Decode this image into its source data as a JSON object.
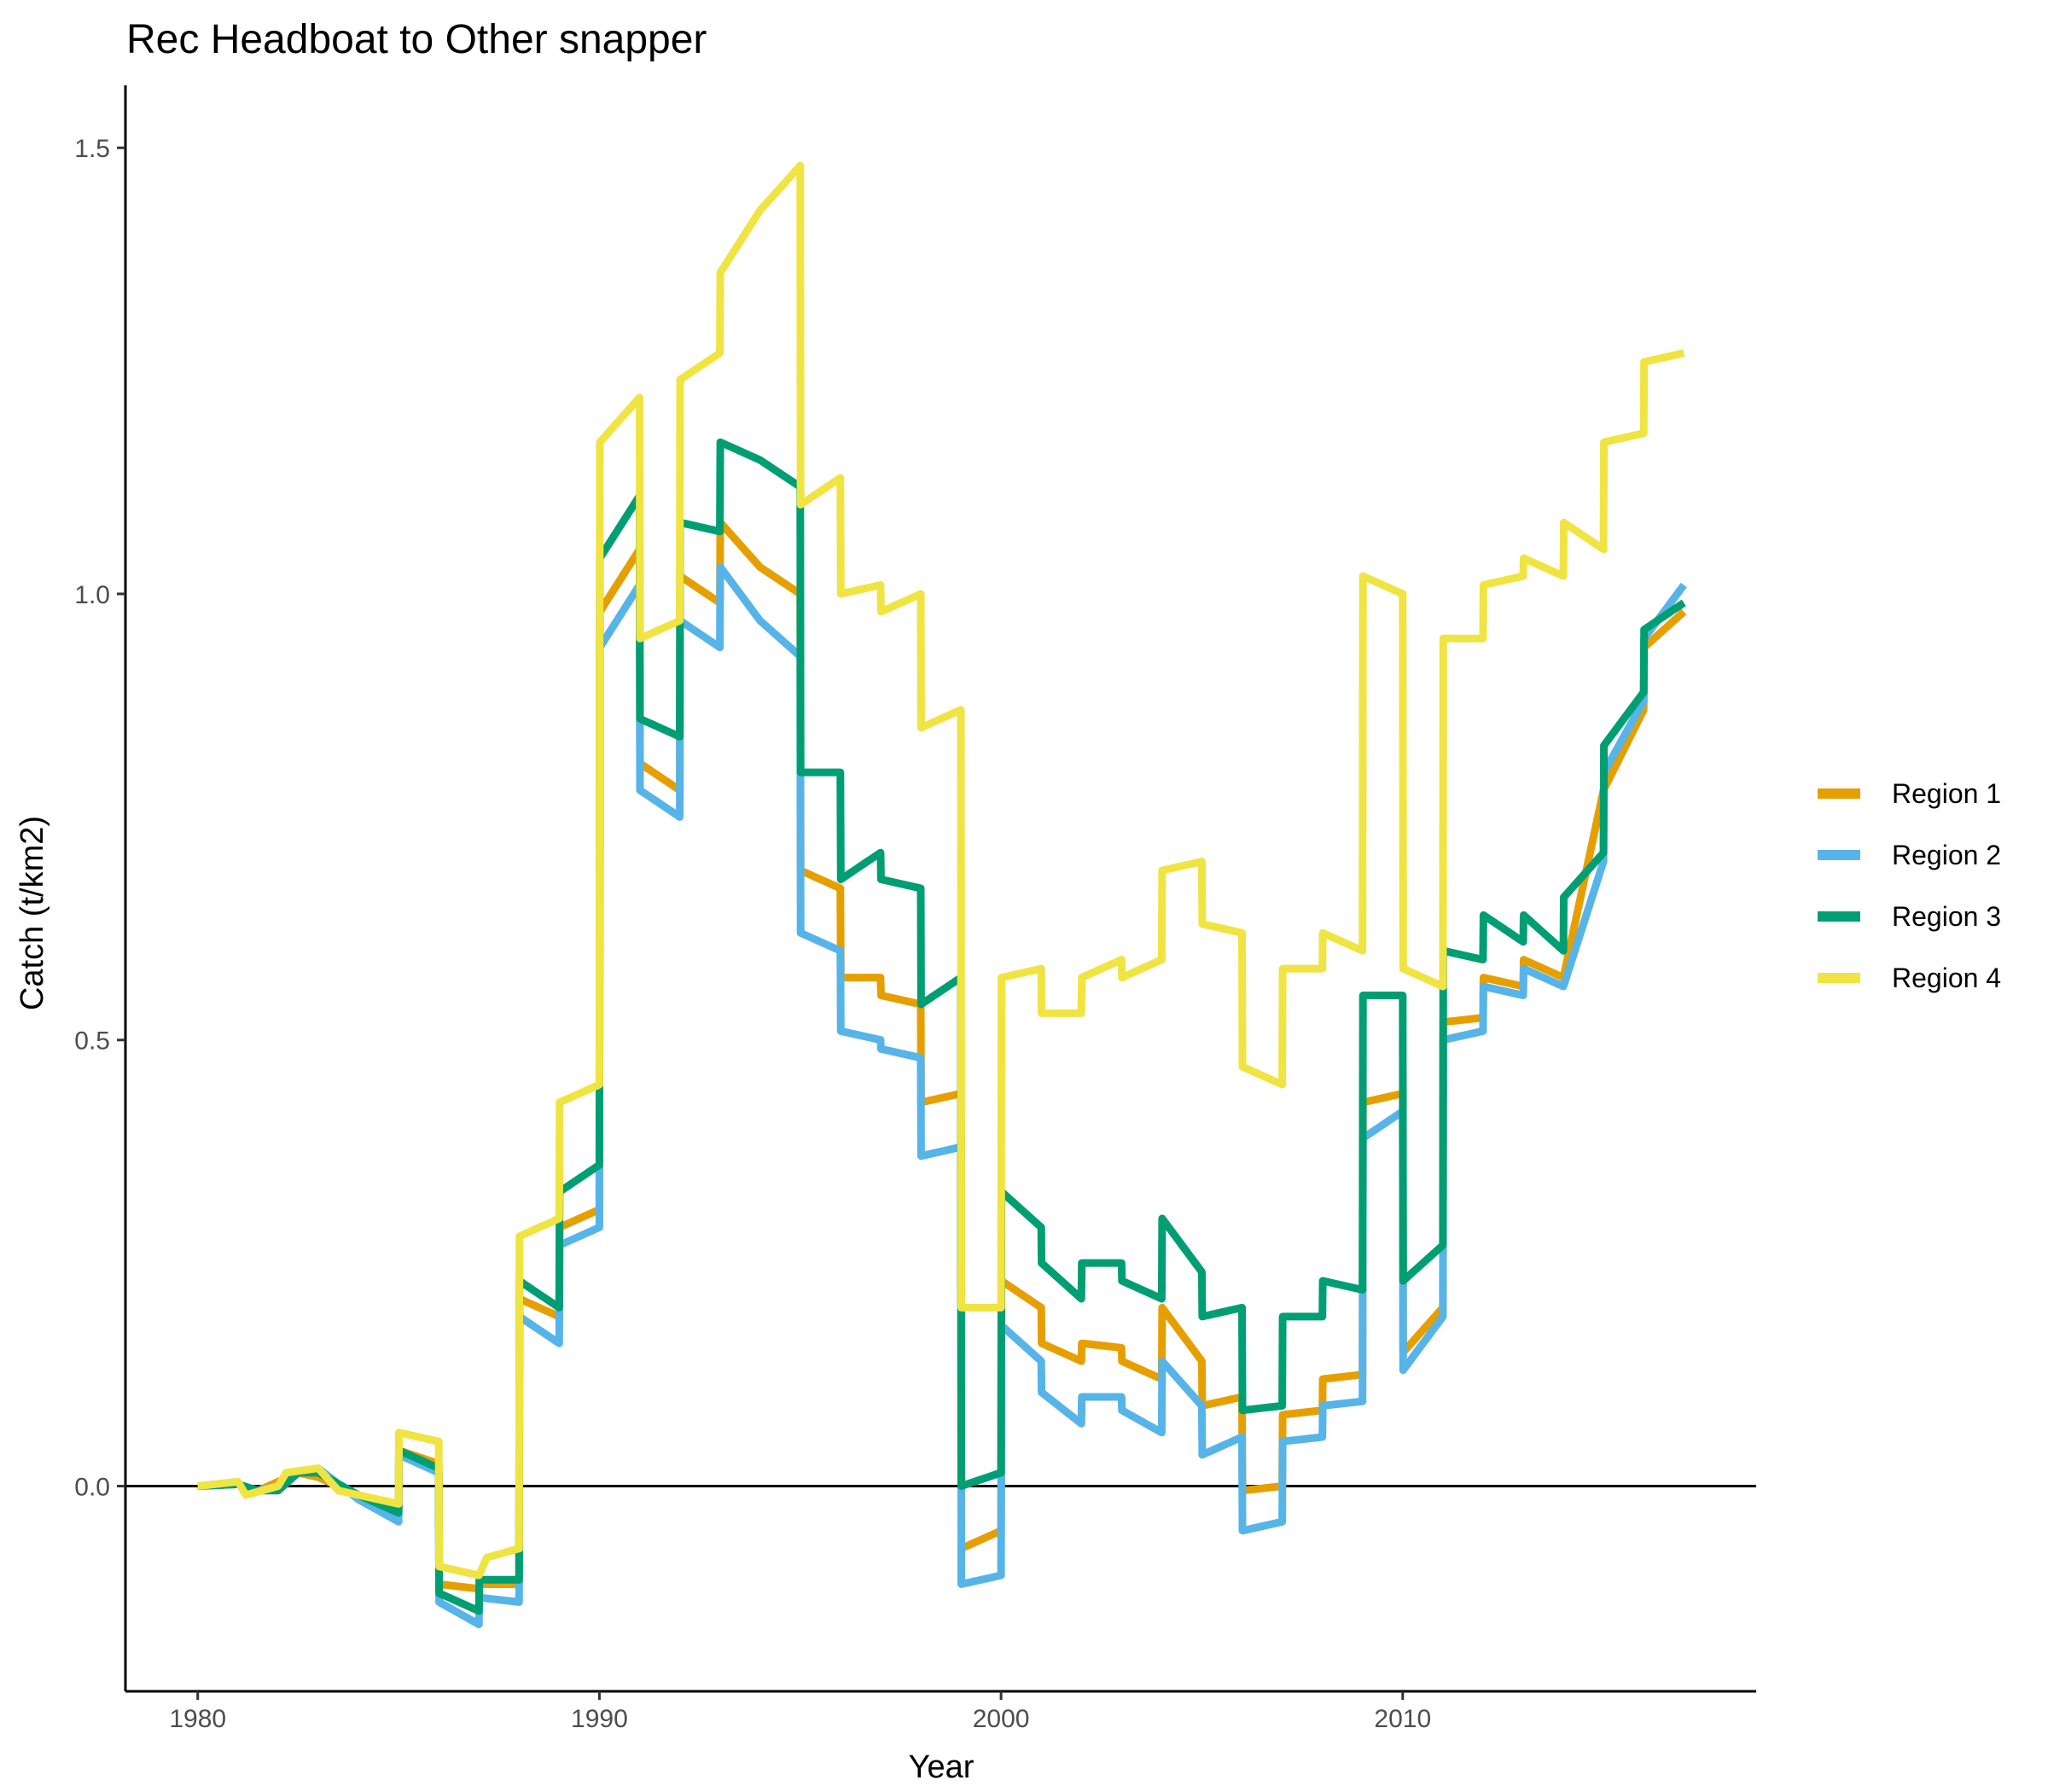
{
  "chart_data": {
    "type": "line",
    "title": "Rec Headboat to Other snapper",
    "xlabel": "Year",
    "ylabel": "Catch (t/km2)",
    "xlim": [
      1978.2,
      2018.8
    ],
    "ylim": [
      -0.23,
      1.57
    ],
    "x_ticks": [
      1980,
      1990,
      2000,
      2010
    ],
    "y_ticks": [
      0.0,
      0.5,
      1.0,
      1.5
    ],
    "y_tick_labels": [
      "0.0",
      "0.5",
      "1.0",
      "1.5"
    ],
    "hline": 0,
    "grid": false,
    "legend_position": "right",
    "series": [
      {
        "name": "Region 1",
        "color": "#E69F00",
        "points": [
          [
            1980,
            0
          ],
          [
            1981,
            0.002
          ],
          [
            1981.5,
            -0.005
          ],
          [
            1982,
            0.005
          ],
          [
            1982.5,
            0.015
          ],
          [
            1983,
            0.01
          ],
          [
            1984,
            -0.01
          ],
          [
            1985,
            -0.025
          ],
          [
            1985.01,
            0.04
          ],
          [
            1986,
            0.025
          ],
          [
            1986.01,
            -0.11
          ],
          [
            1987,
            -0.115
          ],
          [
            1987.01,
            -0.11
          ],
          [
            1988,
            -0.11
          ],
          [
            1988.01,
            0.21
          ],
          [
            1989,
            0.19
          ],
          [
            1989.01,
            0.29
          ],
          [
            1990,
            0.31
          ],
          [
            1990.01,
            0.98
          ],
          [
            1991,
            1.05
          ],
          [
            1991.01,
            0.81
          ],
          [
            1992,
            0.78
          ],
          [
            1992.01,
            1.02
          ],
          [
            1993,
            0.99
          ],
          [
            1993.01,
            1.08
          ],
          [
            1994,
            1.03
          ],
          [
            1995,
            1.0
          ],
          [
            1995.01,
            0.69
          ],
          [
            1996,
            0.67
          ],
          [
            1996.01,
            0.57
          ],
          [
            1997,
            0.57
          ],
          [
            1997.01,
            0.55
          ],
          [
            1998,
            0.54
          ],
          [
            1998.01,
            0.43
          ],
          [
            1999,
            0.44
          ],
          [
            1999.01,
            -0.07
          ],
          [
            2000,
            -0.05
          ],
          [
            2000.01,
            0.23
          ],
          [
            2001,
            0.2
          ],
          [
            2001.01,
            0.16
          ],
          [
            2002,
            0.14
          ],
          [
            2002.01,
            0.16
          ],
          [
            2003,
            0.155
          ],
          [
            2003.01,
            0.14
          ],
          [
            2004,
            0.12
          ],
          [
            2004.01,
            0.2
          ],
          [
            2005,
            0.14
          ],
          [
            2005.01,
            0.09
          ],
          [
            2006,
            0.1
          ],
          [
            2006.01,
            -0.005
          ],
          [
            2007,
            0.0
          ],
          [
            2007.01,
            0.08
          ],
          [
            2008,
            0.085
          ],
          [
            2008.01,
            0.12
          ],
          [
            2009,
            0.125
          ],
          [
            2009.01,
            0.43
          ],
          [
            2010,
            0.44
          ],
          [
            2010.01,
            0.15
          ],
          [
            2011,
            0.2
          ],
          [
            2011.01,
            0.52
          ],
          [
            2012,
            0.525
          ],
          [
            2012.01,
            0.57
          ],
          [
            2013,
            0.56
          ],
          [
            2013.01,
            0.59
          ],
          [
            2014,
            0.57
          ],
          [
            2015,
            0.78
          ],
          [
            2016,
            0.87
          ],
          [
            2016.01,
            0.94
          ],
          [
            2017,
            0.98
          ]
        ]
      },
      {
        "name": "Region 2",
        "color": "#56B4E9",
        "points": [
          [
            1980,
            0
          ],
          [
            1981,
            0.002
          ],
          [
            1981.5,
            -0.005
          ],
          [
            1982,
            0.0
          ],
          [
            1982.5,
            0.015
          ],
          [
            1983,
            0.02
          ],
          [
            1984,
            -0.015
          ],
          [
            1985,
            -0.04
          ],
          [
            1985.01,
            0.035
          ],
          [
            1986,
            0.015
          ],
          [
            1986.01,
            -0.13
          ],
          [
            1987,
            -0.155
          ],
          [
            1987.01,
            -0.125
          ],
          [
            1988,
            -0.13
          ],
          [
            1988.01,
            0.19
          ],
          [
            1989,
            0.16
          ],
          [
            1989.01,
            0.27
          ],
          [
            1990,
            0.29
          ],
          [
            1990.01,
            0.94
          ],
          [
            1991,
            1.01
          ],
          [
            1991.01,
            0.78
          ],
          [
            1992,
            0.75
          ],
          [
            1992.01,
            0.97
          ],
          [
            1993,
            0.94
          ],
          [
            1993.01,
            1.03
          ],
          [
            1994,
            0.97
          ],
          [
            1995,
            0.93
          ],
          [
            1995.01,
            0.62
          ],
          [
            1996,
            0.6
          ],
          [
            1996.01,
            0.51
          ],
          [
            1997,
            0.5
          ],
          [
            1997.01,
            0.49
          ],
          [
            1998,
            0.48
          ],
          [
            1998.01,
            0.37
          ],
          [
            1999,
            0.38
          ],
          [
            1999.01,
            -0.11
          ],
          [
            2000,
            -0.1
          ],
          [
            2000.01,
            0.18
          ],
          [
            2001,
            0.14
          ],
          [
            2001.01,
            0.105
          ],
          [
            2002,
            0.07
          ],
          [
            2002.01,
            0.1
          ],
          [
            2003,
            0.1
          ],
          [
            2003.01,
            0.085
          ],
          [
            2004,
            0.06
          ],
          [
            2004.01,
            0.14
          ],
          [
            2005,
            0.09
          ],
          [
            2005.01,
            0.035
          ],
          [
            2006,
            0.055
          ],
          [
            2006.01,
            -0.05
          ],
          [
            2007,
            -0.04
          ],
          [
            2007.01,
            0.05
          ],
          [
            2008,
            0.055
          ],
          [
            2008.01,
            0.09
          ],
          [
            2009,
            0.095
          ],
          [
            2009.01,
            0.39
          ],
          [
            2010,
            0.42
          ],
          [
            2010.01,
            0.13
          ],
          [
            2011,
            0.19
          ],
          [
            2011.01,
            0.5
          ],
          [
            2012,
            0.51
          ],
          [
            2012.01,
            0.56
          ],
          [
            2013,
            0.55
          ],
          [
            2013.01,
            0.58
          ],
          [
            2014,
            0.56
          ],
          [
            2015,
            0.7
          ],
          [
            2015.01,
            0.8
          ],
          [
            2016,
            0.88
          ],
          [
            2016.01,
            0.95
          ],
          [
            2017,
            1.01
          ]
        ]
      },
      {
        "name": "Region 3",
        "color": "#009E73",
        "points": [
          [
            1980,
            0
          ],
          [
            1981,
            0.002
          ],
          [
            1981.5,
            -0.005
          ],
          [
            1982,
            -0.005
          ],
          [
            1982.5,
            0.015
          ],
          [
            1983,
            0.015
          ],
          [
            1984,
            -0.01
          ],
          [
            1985,
            -0.03
          ],
          [
            1985.01,
            0.04
          ],
          [
            1986,
            0.02
          ],
          [
            1986.01,
            -0.12
          ],
          [
            1987,
            -0.14
          ],
          [
            1987.01,
            -0.105
          ],
          [
            1988,
            -0.105
          ],
          [
            1988.01,
            0.23
          ],
          [
            1989,
            0.2
          ],
          [
            1989.01,
            0.33
          ],
          [
            1990,
            0.36
          ],
          [
            1990.01,
            1.04
          ],
          [
            1991,
            1.11
          ],
          [
            1991.01,
            0.86
          ],
          [
            1992,
            0.84
          ],
          [
            1992.01,
            1.08
          ],
          [
            1993,
            1.07
          ],
          [
            1993.01,
            1.17
          ],
          [
            1994,
            1.15
          ],
          [
            1995,
            1.12
          ],
          [
            1995.01,
            0.8
          ],
          [
            1996,
            0.8
          ],
          [
            1996.01,
            0.68
          ],
          [
            1997,
            0.71
          ],
          [
            1997.01,
            0.68
          ],
          [
            1998,
            0.67
          ],
          [
            1998.01,
            0.54
          ],
          [
            1999,
            0.57
          ],
          [
            1999.01,
            0.0
          ],
          [
            2000,
            0.015
          ],
          [
            2000.01,
            0.33
          ],
          [
            2001,
            0.29
          ],
          [
            2001.01,
            0.25
          ],
          [
            2002,
            0.21
          ],
          [
            2002.01,
            0.25
          ],
          [
            2003,
            0.25
          ],
          [
            2003.01,
            0.23
          ],
          [
            2004,
            0.21
          ],
          [
            2004.01,
            0.3
          ],
          [
            2005,
            0.24
          ],
          [
            2005.01,
            0.19
          ],
          [
            2006,
            0.2
          ],
          [
            2006.01,
            0.085
          ],
          [
            2007,
            0.09
          ],
          [
            2007.01,
            0.19
          ],
          [
            2008,
            0.19
          ],
          [
            2008.01,
            0.23
          ],
          [
            2009,
            0.22
          ],
          [
            2009.01,
            0.55
          ],
          [
            2010,
            0.55
          ],
          [
            2010.01,
            0.23
          ],
          [
            2011,
            0.27
          ],
          [
            2011.01,
            0.6
          ],
          [
            2012,
            0.59
          ],
          [
            2012.01,
            0.64
          ],
          [
            2013,
            0.61
          ],
          [
            2013.01,
            0.64
          ],
          [
            2014,
            0.6
          ],
          [
            2014.01,
            0.66
          ],
          [
            2015,
            0.71
          ],
          [
            2015.01,
            0.83
          ],
          [
            2016,
            0.89
          ],
          [
            2016.01,
            0.96
          ],
          [
            2017,
            0.99
          ]
        ]
      },
      {
        "name": "Region 4",
        "color": "#F0E442",
        "points": [
          [
            1980,
            0
          ],
          [
            1981,
            0.005
          ],
          [
            1981.2,
            -0.01
          ],
          [
            1982,
            0.0
          ],
          [
            1982.2,
            0.015
          ],
          [
            1983,
            0.02
          ],
          [
            1983.5,
            -0.005
          ],
          [
            1984,
            -0.01
          ],
          [
            1985,
            -0.02
          ],
          [
            1985.01,
            0.06
          ],
          [
            1986,
            0.05
          ],
          [
            1986.01,
            -0.09
          ],
          [
            1987,
            -0.1
          ],
          [
            1987.2,
            -0.08
          ],
          [
            1988,
            -0.07
          ],
          [
            1988.01,
            0.28
          ],
          [
            1989,
            0.3
          ],
          [
            1989.01,
            0.43
          ],
          [
            1990,
            0.45
          ],
          [
            1990.01,
            1.17
          ],
          [
            1991,
            1.22
          ],
          [
            1991.01,
            0.95
          ],
          [
            1992,
            0.97
          ],
          [
            1992.01,
            1.24
          ],
          [
            1993,
            1.27
          ],
          [
            1993.01,
            1.36
          ],
          [
            1994,
            1.43
          ],
          [
            1995,
            1.48
          ],
          [
            1995.01,
            1.1
          ],
          [
            1996,
            1.13
          ],
          [
            1996.01,
            1.0
          ],
          [
            1997,
            1.01
          ],
          [
            1997.01,
            0.98
          ],
          [
            1998,
            1.0
          ],
          [
            1998.01,
            0.85
          ],
          [
            1999,
            0.87
          ],
          [
            1999.01,
            0.2
          ],
          [
            2000,
            0.2
          ],
          [
            2000.01,
            0.57
          ],
          [
            2001,
            0.58
          ],
          [
            2001.01,
            0.53
          ],
          [
            2002,
            0.53
          ],
          [
            2002.01,
            0.57
          ],
          [
            2003,
            0.59
          ],
          [
            2003.01,
            0.57
          ],
          [
            2004,
            0.59
          ],
          [
            2004.01,
            0.69
          ],
          [
            2005,
            0.7
          ],
          [
            2005.01,
            0.63
          ],
          [
            2006,
            0.62
          ],
          [
            2006.01,
            0.47
          ],
          [
            2007,
            0.45
          ],
          [
            2007.01,
            0.58
          ],
          [
            2008,
            0.58
          ],
          [
            2008.01,
            0.62
          ],
          [
            2009,
            0.6
          ],
          [
            2009.01,
            1.02
          ],
          [
            2010,
            1.0
          ],
          [
            2010.01,
            0.58
          ],
          [
            2011,
            0.56
          ],
          [
            2011.01,
            0.95
          ],
          [
            2012,
            0.95
          ],
          [
            2012.01,
            1.01
          ],
          [
            2013,
            1.02
          ],
          [
            2013.01,
            1.04
          ],
          [
            2014,
            1.02
          ],
          [
            2014.01,
            1.08
          ],
          [
            2015,
            1.05
          ],
          [
            2015.01,
            1.17
          ],
          [
            2016,
            1.18
          ],
          [
            2016.01,
            1.26
          ],
          [
            2017,
            1.27
          ]
        ]
      }
    ]
  }
}
